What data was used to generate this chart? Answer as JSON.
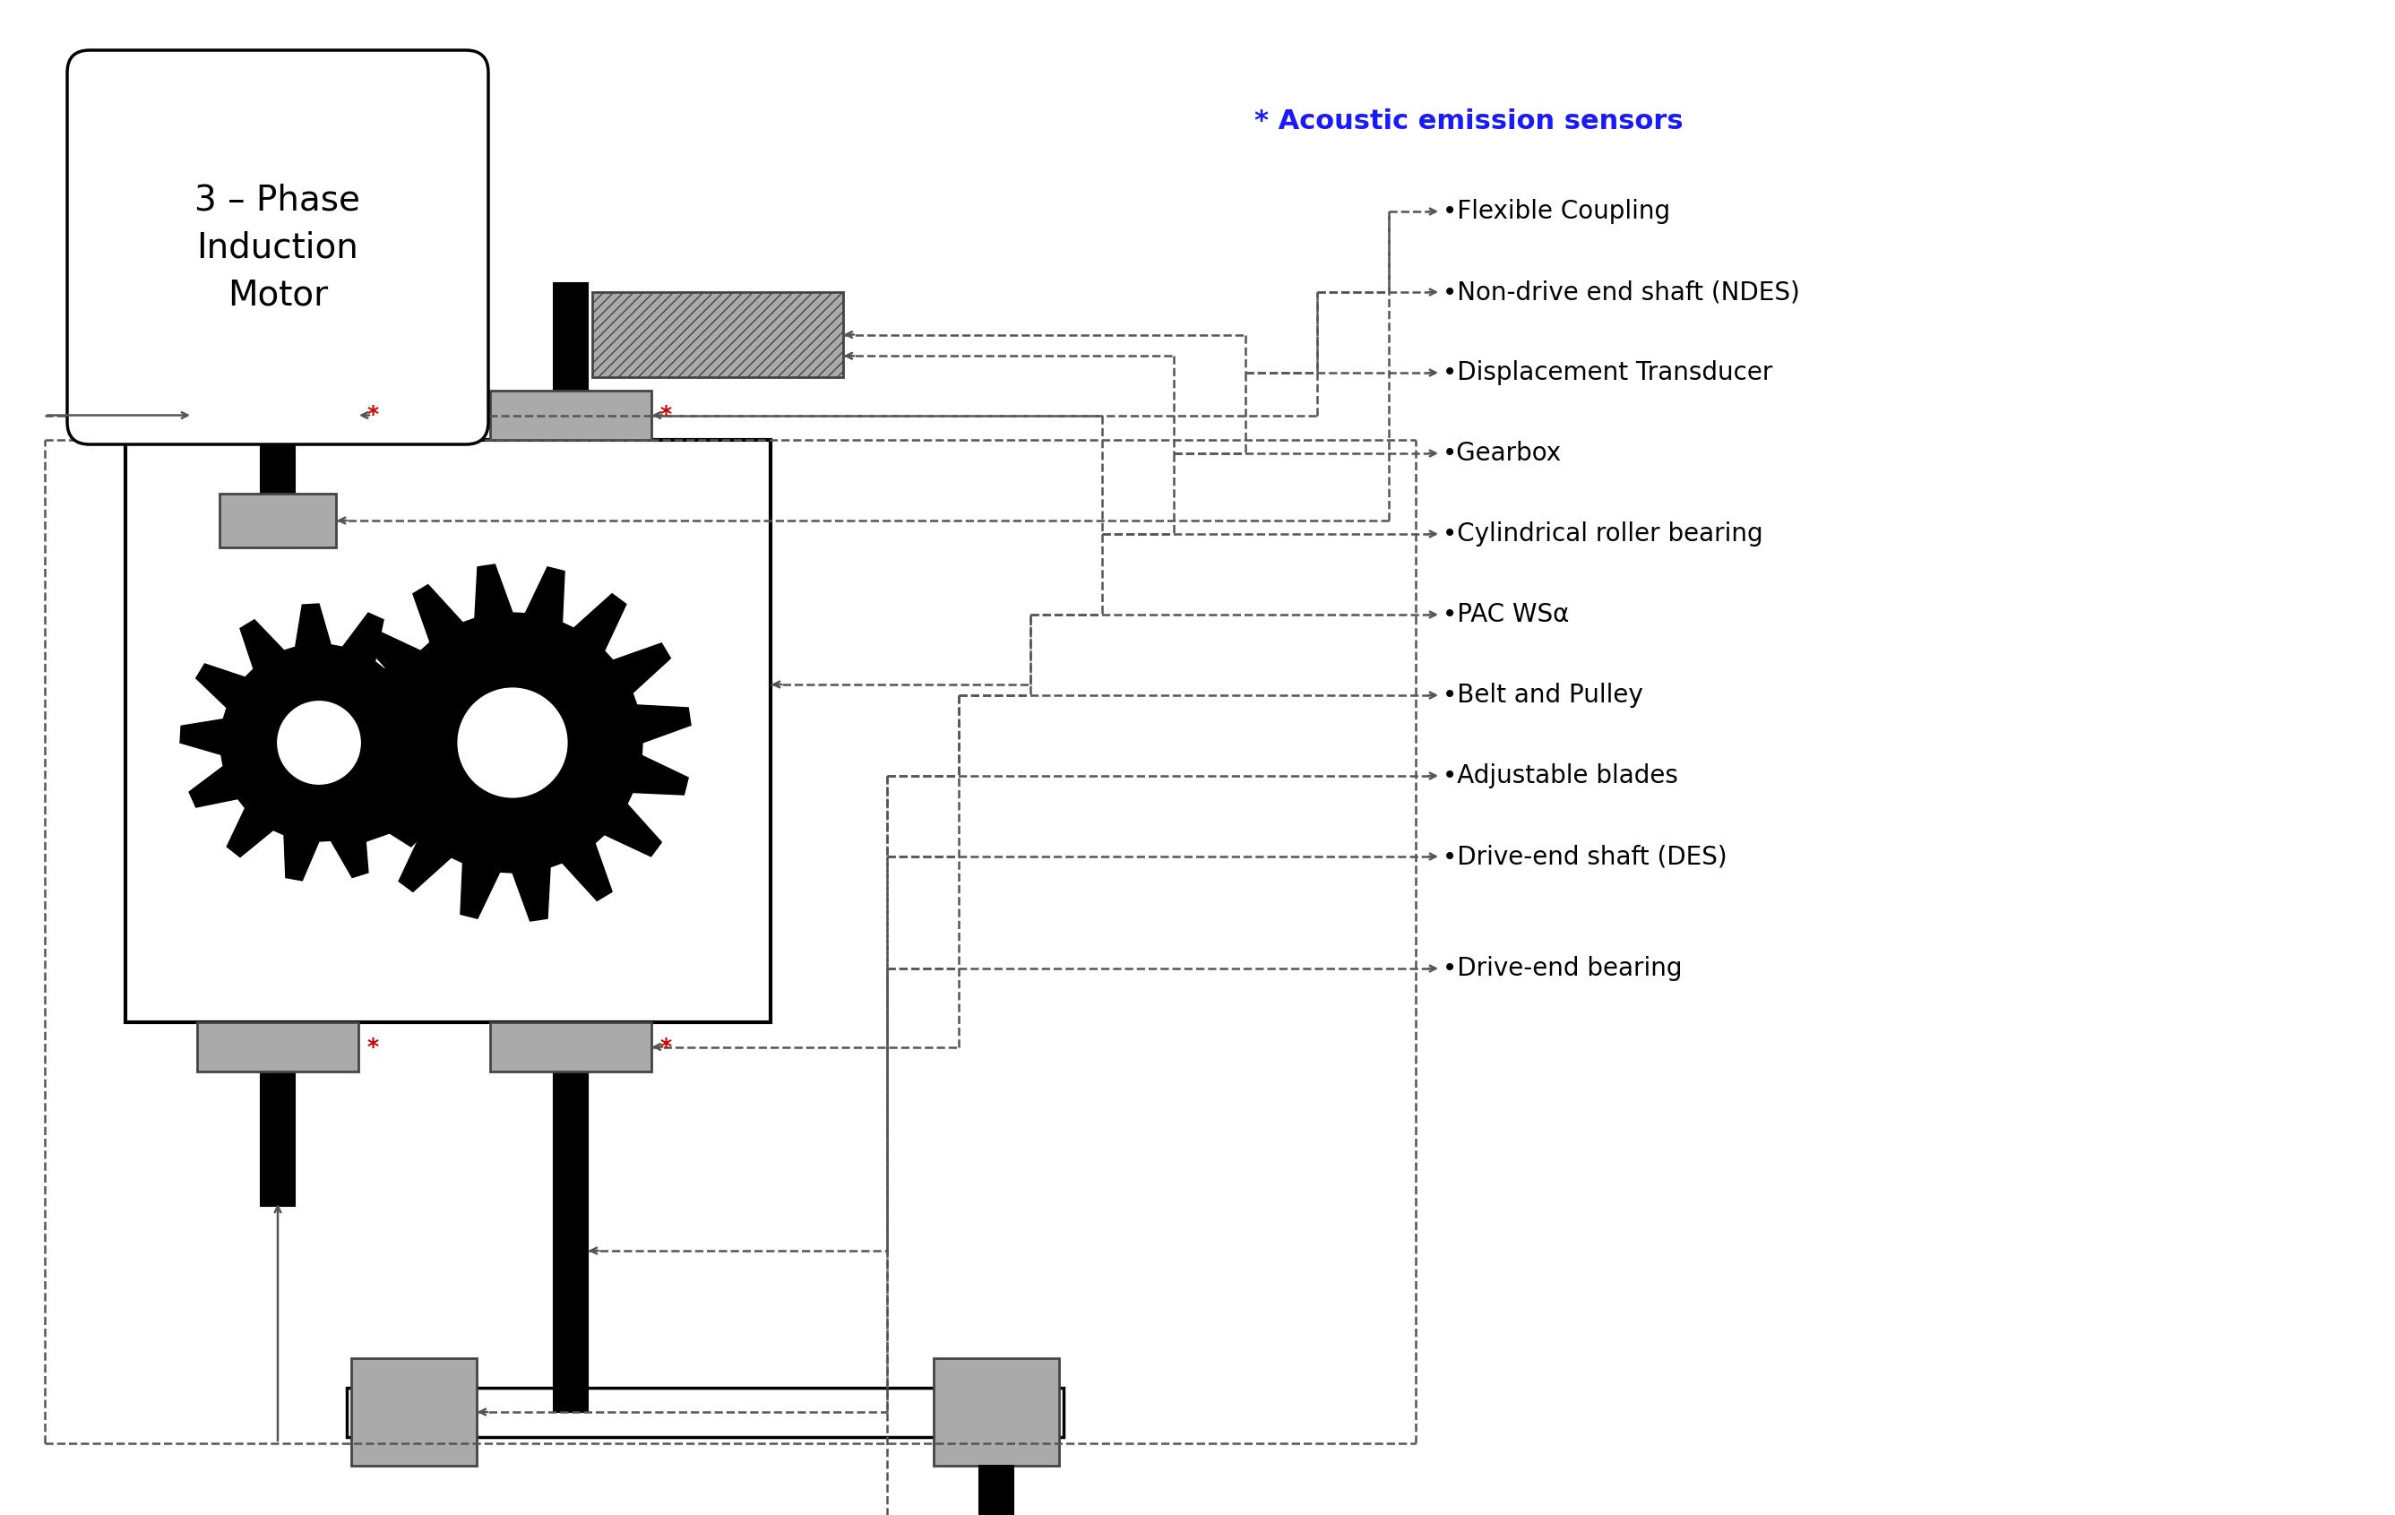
{
  "motor_label": "3 – Phase\nInduction\nMotor",
  "acoustic_label": "* Acoustic emission sensors",
  "components": [
    "Flexible Coupling",
    "Non-drive end shaft (NDES)",
    "Displacement Transducer",
    "Gearbox",
    "Cylindrical roller bearing",
    "PAC WSα",
    "Belt and Pulley",
    "Adjustable blades",
    "Drive-end shaft (DES)",
    "Drive-end bearing"
  ],
  "bg_color": "#ffffff",
  "black": "#000000",
  "lgray": "#aaaaaa",
  "dgray": "#444444",
  "mgray": "#888888",
  "dash_color": "#555555",
  "blue": "#1a1aff",
  "red_star": "#cc0000",
  "fontsize_motor": 28,
  "fontsize_label": 20,
  "fontsize_acoustic": 22,
  "fontsize_star": 18
}
